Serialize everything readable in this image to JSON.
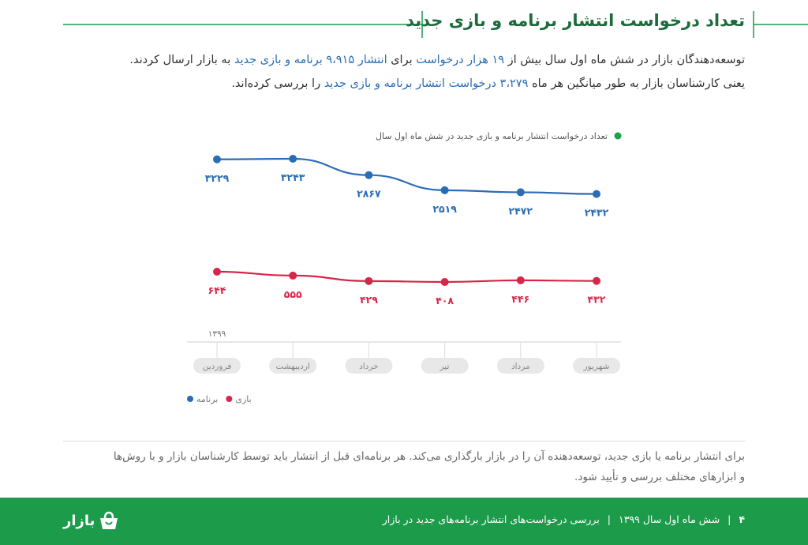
{
  "header": {
    "title": "تعداد درخواست انتشار برنامه و بازی جدید"
  },
  "intro": {
    "lines": [
      [
        "توسعه‌دهندگان بازار در شش ماه اول سال بیش از ",
        "۱۹ هزار درخواست",
        " برای ",
        "انتشار ۹،۹۱۵ برنامه و بازی جدید",
        " به بازار ارسال کردند."
      ],
      [
        "یعنی کارشناسان بازار به طور میانگین هر ماه ",
        "۳،۲۷۹ درخواست انتشار برنامه و بازی جدید",
        " را بررسی کرده‌اند."
      ]
    ]
  },
  "chart_data": {
    "type": "line",
    "subtitle": "تعداد درخواست انتشار برنامه و بازی جدید در شش ماه اول سال",
    "subtitle_color": "#1aa34a",
    "year_label": "۱۳۹۹",
    "categories": [
      "فروردین",
      "اردیبهشت",
      "خرداد",
      "تیر",
      "مرداد",
      "شهریور"
    ],
    "series": [
      {
        "name": "برنامه",
        "color": "#2a6db5",
        "values": [
          3229,
          3243,
          2867,
          2519,
          2472,
          2432
        ],
        "value_labels": [
          "۳۲۲۹",
          "۳۲۴۳",
          "۲۸۶۷",
          "۲۵۱۹",
          "۲۴۷۲",
          "۲۴۳۲"
        ]
      },
      {
        "name": "بازی",
        "color": "#d7264a",
        "values": [
          644,
          555,
          429,
          408,
          446,
          432
        ],
        "value_labels": [
          "۶۴۴",
          "۵۵۵",
          "۴۲۹",
          "۴۰۸",
          "۴۴۶",
          "۴۳۲"
        ]
      }
    ]
  },
  "note": {
    "lines": [
      "برای انتشار برنامه یا بازی جدید، توسعه‌دهنده آن را در بازار بارگذاری می‌کند. هر برنامه‌ای قبل از انتشار باید توسط کارشناسان بازار و با روش‌ها",
      "و ابزارهای مختلف بررسی و تأیید شود."
    ]
  },
  "footer": {
    "page": "۴",
    "period": "شش ماه اول سال ۱۳۹۹",
    "report": "بررسی درخواست‌های انتشار برنامه‌های جدید در بازار",
    "logo": "بازار"
  }
}
